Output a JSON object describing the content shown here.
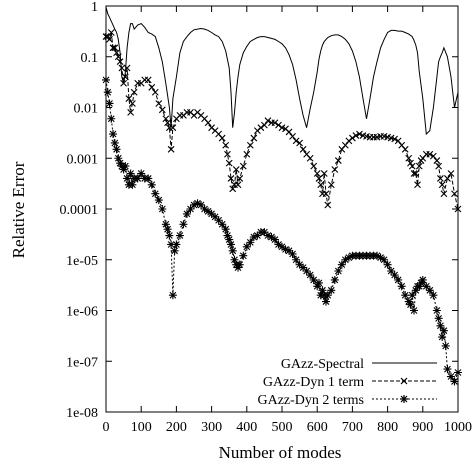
{
  "chart_data": {
    "type": "line",
    "title": "",
    "xlabel": "Number of modes",
    "ylabel": "Relative Error",
    "xlim": [
      0,
      1000
    ],
    "ylim": [
      1e-08,
      1
    ],
    "y_scale": "log",
    "grid": false,
    "legend_position": "bottom-left",
    "x_ticks": [
      {
        "value": 0,
        "label": "0"
      },
      {
        "value": 100,
        "label": "100"
      },
      {
        "value": 200,
        "label": "200"
      },
      {
        "value": 300,
        "label": "300"
      },
      {
        "value": 400,
        "label": "400"
      },
      {
        "value": 500,
        "label": "500"
      },
      {
        "value": 600,
        "label": "600"
      },
      {
        "value": 700,
        "label": "700"
      },
      {
        "value": 800,
        "label": "800"
      },
      {
        "value": 900,
        "label": "900"
      },
      {
        "value": 1000,
        "label": "1000"
      }
    ],
    "y_ticks": [
      {
        "value": 1,
        "label": "1"
      },
      {
        "value": 0.1,
        "label": "0.1"
      },
      {
        "value": 0.01,
        "label": "0.01"
      },
      {
        "value": 0.001,
        "label": "0.001"
      },
      {
        "value": 0.0001,
        "label": "0.0001"
      },
      {
        "value": 1e-05,
        "label": "1e-05"
      },
      {
        "value": 1e-06,
        "label": "1e-06"
      },
      {
        "value": 1e-07,
        "label": "1e-07"
      },
      {
        "value": 1e-08,
        "label": "1e-08"
      }
    ],
    "series": [
      {
        "name": "GAzz-Spectral",
        "style": "solid",
        "marker": "none",
        "x": [
          0,
          5,
          10,
          15,
          20,
          25,
          30,
          35,
          40,
          45,
          50,
          55,
          60,
          65,
          70,
          75,
          80,
          90,
          100,
          110,
          120,
          130,
          140,
          150,
          160,
          170,
          180,
          185,
          190,
          200,
          210,
          220,
          230,
          240,
          250,
          260,
          270,
          280,
          290,
          300,
          310,
          320,
          330,
          340,
          350,
          355,
          360,
          365,
          370,
          375,
          380,
          390,
          400,
          410,
          420,
          430,
          440,
          450,
          460,
          470,
          480,
          490,
          500,
          510,
          520,
          530,
          540,
          550,
          560,
          570,
          580,
          590,
          600,
          605,
          610,
          615,
          620,
          630,
          640,
          650,
          660,
          670,
          680,
          690,
          700,
          710,
          720,
          730,
          740,
          750,
          760,
          770,
          780,
          790,
          800,
          810,
          820,
          830,
          840,
          850,
          860,
          870,
          875,
          880,
          885,
          890,
          900,
          910,
          920,
          930,
          940,
          945,
          950,
          955,
          960,
          970,
          980,
          990,
          1000
        ],
        "y": [
          0.95,
          0.7,
          0.6,
          0.5,
          0.42,
          0.35,
          0.3,
          0.22,
          0.12,
          0.04,
          0.03,
          0.05,
          0.15,
          0.3,
          0.45,
          0.45,
          0.35,
          0.42,
          0.45,
          0.38,
          0.3,
          0.28,
          0.25,
          0.15,
          0.08,
          0.03,
          0.01,
          0.004,
          0.015,
          0.04,
          0.12,
          0.2,
          0.25,
          0.3,
          0.34,
          0.35,
          0.36,
          0.35,
          0.33,
          0.3,
          0.27,
          0.25,
          0.2,
          0.13,
          0.06,
          0.02,
          0.004,
          0.008,
          0.02,
          0.04,
          0.07,
          0.12,
          0.16,
          0.2,
          0.22,
          0.24,
          0.25,
          0.25,
          0.24,
          0.23,
          0.22,
          0.2,
          0.18,
          0.15,
          0.11,
          0.07,
          0.035,
          0.015,
          0.007,
          0.004,
          0.0095,
          0.02,
          0.05,
          0.09,
          0.13,
          0.17,
          0.2,
          0.24,
          0.26,
          0.27,
          0.27,
          0.25,
          0.22,
          0.18,
          0.13,
          0.08,
          0.04,
          0.015,
          0.006,
          0.015,
          0.04,
          0.08,
          0.15,
          0.22,
          0.3,
          0.33,
          0.33,
          0.32,
          0.32,
          0.3,
          0.28,
          0.25,
          0.21,
          0.17,
          0.12,
          0.05,
          0.015,
          0.003,
          0.0035,
          0.01,
          0.04,
          0.08,
          0.1,
          0.12,
          0.15,
          0.1,
          0.04,
          0.01,
          0.02
        ]
      },
      {
        "name": "GAzz-Dyn 1 term",
        "style": "dashed",
        "marker": "x",
        "x": [
          0,
          5,
          10,
          15,
          20,
          25,
          30,
          35,
          40,
          45,
          50,
          55,
          60,
          65,
          70,
          75,
          80,
          90,
          100,
          110,
          120,
          130,
          140,
          150,
          160,
          170,
          175,
          180,
          185,
          190,
          200,
          210,
          220,
          230,
          240,
          250,
          260,
          270,
          280,
          290,
          300,
          310,
          320,
          330,
          340,
          345,
          350,
          355,
          360,
          365,
          370,
          375,
          380,
          390,
          400,
          410,
          420,
          430,
          440,
          450,
          460,
          470,
          480,
          490,
          500,
          510,
          520,
          530,
          540,
          550,
          560,
          570,
          580,
          590,
          600,
          605,
          610,
          615,
          620,
          625,
          630,
          640,
          650,
          660,
          670,
          680,
          690,
          700,
          710,
          720,
          730,
          740,
          750,
          760,
          770,
          780,
          790,
          800,
          810,
          820,
          830,
          840,
          850,
          860,
          865,
          870,
          875,
          880,
          885,
          890,
          895,
          900,
          910,
          920,
          930,
          940,
          945,
          950,
          955,
          960,
          970,
          980,
          990,
          1000
        ],
        "y": [
          0.25,
          0.25,
          0.22,
          0.3,
          0.15,
          0.15,
          0.12,
          0.1,
          0.08,
          0.06,
          0.03,
          0.04,
          0.06,
          0.015,
          0.008,
          0.012,
          0.02,
          0.03,
          0.03,
          0.035,
          0.035,
          0.025,
          0.02,
          0.012,
          0.009,
          0.006,
          0.005,
          0.004,
          0.0015,
          0.004,
          0.006,
          0.007,
          0.007,
          0.008,
          0.008,
          0.007,
          0.008,
          0.007,
          0.006,
          0.005,
          0.004,
          0.0035,
          0.003,
          0.0025,
          0.0018,
          0.0012,
          0.0008,
          0.0004,
          0.00025,
          0.0003,
          0.0006,
          0.0003,
          0.0004,
          0.0007,
          0.0012,
          0.0018,
          0.0025,
          0.0035,
          0.004,
          0.0045,
          0.0055,
          0.005,
          0.005,
          0.0045,
          0.004,
          0.0038,
          0.0033,
          0.0027,
          0.0022,
          0.002,
          0.0015,
          0.0012,
          0.001,
          0.0007,
          0.0005,
          0.0004,
          0.0003,
          0.0002,
          0.0005,
          0.0002,
          0.00012,
          0.0003,
          0.0006,
          0.0009,
          0.0015,
          0.0018,
          0.0022,
          0.0025,
          0.0028,
          0.003,
          0.0028,
          0.0027,
          0.0026,
          0.0026,
          0.0026,
          0.0027,
          0.0027,
          0.0026,
          0.0025,
          0.0024,
          0.0022,
          0.0018,
          0.0015,
          0.001,
          0.0008,
          0.0007,
          0.0005,
          0.0005,
          0.0003,
          0.0007,
          0.0009,
          0.001,
          0.0012,
          0.0012,
          0.0011,
          0.0009,
          0.0007,
          0.0004,
          0.0003,
          0.0002,
          0.0004,
          0.0005,
          0.0002,
          0.0001
        ]
      },
      {
        "name": "GAzz-Dyn 2 terms",
        "style": "dotted",
        "marker": "star",
        "x": [
          0,
          5,
          10,
          15,
          20,
          25,
          30,
          35,
          40,
          45,
          50,
          55,
          60,
          65,
          70,
          75,
          80,
          90,
          100,
          110,
          120,
          130,
          140,
          150,
          160,
          170,
          175,
          180,
          185,
          190,
          195,
          200,
          210,
          220,
          230,
          240,
          250,
          260,
          270,
          280,
          290,
          300,
          310,
          320,
          330,
          340,
          345,
          350,
          355,
          360,
          365,
          370,
          375,
          380,
          390,
          400,
          410,
          420,
          430,
          440,
          450,
          460,
          470,
          480,
          490,
          500,
          510,
          520,
          530,
          540,
          550,
          560,
          570,
          580,
          590,
          600,
          605,
          610,
          615,
          620,
          625,
          630,
          640,
          650,
          660,
          670,
          680,
          690,
          700,
          710,
          720,
          730,
          740,
          750,
          760,
          770,
          780,
          790,
          800,
          810,
          820,
          830,
          840,
          850,
          860,
          865,
          870,
          875,
          880,
          885,
          890,
          895,
          900,
          910,
          920,
          930,
          940,
          945,
          950,
          955,
          960,
          965,
          970,
          980,
          990,
          1000
        ],
        "y": [
          0.035,
          0.02,
          0.012,
          0.006,
          0.003,
          0.002,
          0.0015,
          0.001,
          0.0008,
          0.0007,
          0.0006,
          0.0007,
          0.0004,
          0.0003,
          0.0005,
          0.0003,
          0.0004,
          0.0004,
          0.0005,
          0.0004,
          0.0004,
          0.0003,
          0.0002,
          0.00015,
          0.0001,
          5e-05,
          4e-05,
          3e-05,
          2e-05,
          2e-06,
          1.5e-05,
          2e-05,
          3e-05,
          5e-05,
          8e-05,
          0.0001,
          0.00012,
          0.00013,
          0.00012,
          0.0001,
          9e-05,
          8e-05,
          7e-05,
          6e-05,
          5e-05,
          4e-05,
          3e-05,
          2.5e-05,
          2e-05,
          1.5e-05,
          1e-05,
          8e-06,
          7e-06,
          8e-06,
          1.2e-05,
          1.8e-05,
          2.2e-05,
          2.8e-05,
          3e-05,
          3.5e-05,
          3.5e-05,
          3e-05,
          2.8e-05,
          2.5e-05,
          2e-05,
          1.8e-05,
          1.6e-05,
          1.5e-05,
          1.3e-05,
          1e-05,
          8e-06,
          7e-06,
          6e-06,
          5e-06,
          4e-06,
          3e-06,
          3.5e-06,
          2e-06,
          2.5e-06,
          2e-06,
          1.5e-06,
          2e-06,
          2.5e-06,
          4e-06,
          6e-06,
          8e-06,
          1e-05,
          1.1e-05,
          1.2e-05,
          1.2e-05,
          1.2e-05,
          1.2e-05,
          1.2e-05,
          1.2e-05,
          1.2e-05,
          1.2e-05,
          1.1e-05,
          1e-05,
          8e-06,
          6e-06,
          5e-06,
          4e-06,
          3e-06,
          2e-06,
          1.5e-06,
          1.3e-06,
          2e-06,
          1e-06,
          2.5e-06,
          3e-06,
          3e-06,
          3.5e-06,
          4e-06,
          3e-06,
          2.5e-06,
          2e-06,
          1e-06,
          7e-07,
          5e-07,
          3e-07,
          4e-07,
          2e-07,
          7e-08,
          5e-08,
          4e-08,
          6e-08
        ]
      }
    ]
  }
}
